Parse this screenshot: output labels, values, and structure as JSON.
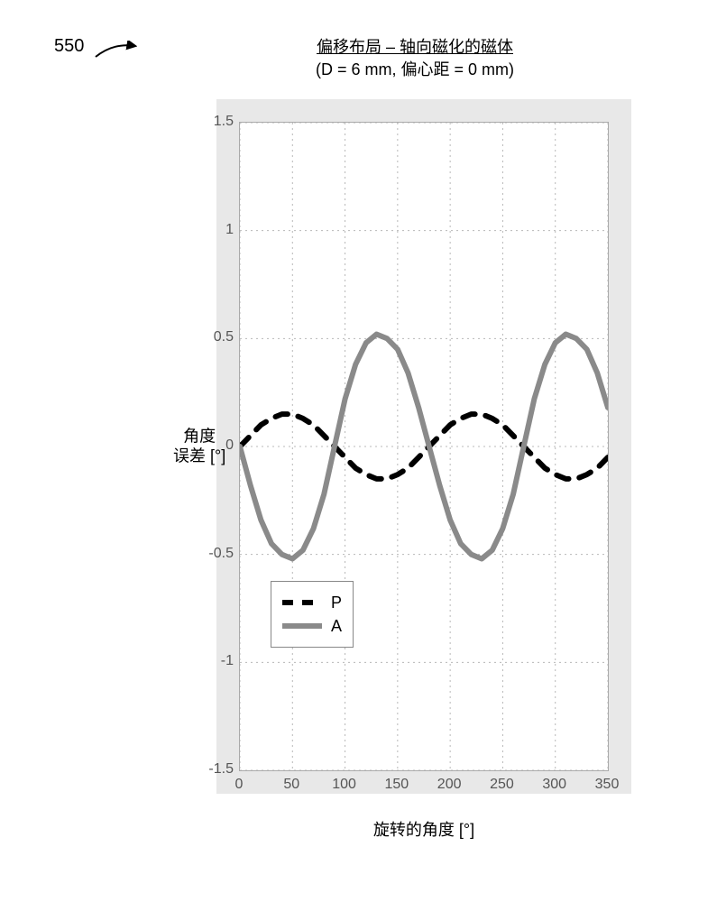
{
  "figure_ref": "550",
  "chart": {
    "type": "line",
    "title_line1": "偏移布局 – 轴向磁化的磁体",
    "title_line2": "(D = 6 mm, 偏心距 = 0 mm)",
    "xlabel": "旋转的角度 [°]",
    "ylabel_l1": "角度",
    "ylabel_l2": "误差 [°]",
    "xlim": [
      0,
      350
    ],
    "ylim": [
      -1.5,
      1.5
    ],
    "xticks": [
      0,
      50,
      100,
      150,
      200,
      250,
      300,
      350
    ],
    "yticks": [
      -1.5,
      -1,
      -0.5,
      0,
      0.5,
      1,
      1.5
    ],
    "ytick_labels": [
      "-1.5",
      "-1",
      "-0.5",
      "0",
      "0.5",
      "1",
      "1.5"
    ],
    "background_color": "#ffffff",
    "frame_color": "#e8e8e8",
    "grid_color": "#b8b8b8",
    "grid_dash": "2 4",
    "axis_font_size": 16,
    "label_font_size": 18,
    "title_font_size": 18,
    "series": [
      {
        "name": "P",
        "color": "#000000",
        "width": 6,
        "dash": "14 12",
        "x": [
          0,
          10,
          20,
          30,
          40,
          50,
          60,
          70,
          80,
          90,
          100,
          110,
          120,
          130,
          140,
          150,
          160,
          170,
          180,
          190,
          200,
          210,
          220,
          230,
          240,
          250,
          260,
          270,
          280,
          290,
          300,
          310,
          320,
          330,
          340,
          350
        ],
        "y": [
          0.0,
          0.05,
          0.1,
          0.13,
          0.15,
          0.15,
          0.13,
          0.1,
          0.05,
          0.0,
          -0.05,
          -0.1,
          -0.13,
          -0.15,
          -0.15,
          -0.13,
          -0.1,
          -0.05,
          0.0,
          0.05,
          0.1,
          0.13,
          0.15,
          0.15,
          0.13,
          0.1,
          0.05,
          0.0,
          -0.05,
          -0.1,
          -0.13,
          -0.15,
          -0.15,
          -0.13,
          -0.1,
          -0.05
        ]
      },
      {
        "name": "A",
        "color": "#8a8a8a",
        "width": 6,
        "dash": "",
        "x": [
          0,
          10,
          20,
          30,
          40,
          50,
          60,
          70,
          80,
          90,
          100,
          110,
          120,
          130,
          140,
          150,
          160,
          170,
          180,
          190,
          200,
          210,
          220,
          230,
          240,
          250,
          260,
          270,
          280,
          290,
          300,
          310,
          320,
          330,
          340,
          350
        ],
        "y": [
          0.0,
          -0.18,
          -0.34,
          -0.45,
          -0.5,
          -0.52,
          -0.48,
          -0.38,
          -0.22,
          0.0,
          0.22,
          0.38,
          0.48,
          0.52,
          0.5,
          0.45,
          0.34,
          0.18,
          0.0,
          -0.18,
          -0.34,
          -0.45,
          -0.5,
          -0.52,
          -0.48,
          -0.38,
          -0.22,
          0.0,
          0.22,
          0.38,
          0.48,
          0.52,
          0.5,
          0.45,
          0.34,
          0.18
        ]
      }
    ],
    "legend": {
      "position": "left-middle",
      "items": [
        "P",
        "A"
      ]
    }
  }
}
